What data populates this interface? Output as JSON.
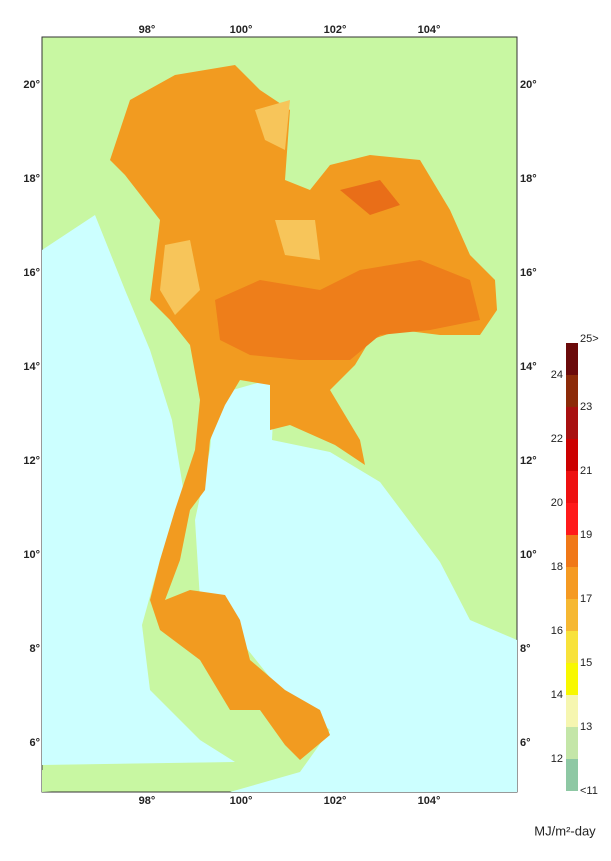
{
  "map": {
    "lon_labels": [
      "98°",
      "100°",
      "102°",
      "104°"
    ],
    "lat_labels": [
      "20°",
      "18°",
      "16°",
      "14°",
      "12°",
      "10°",
      "8°",
      "6°"
    ]
  },
  "legend": {
    "labels": [
      "25>",
      "24",
      "23",
      "22",
      "21",
      "20",
      "19",
      "18",
      "17",
      "16",
      "15",
      "14",
      "13",
      "12",
      "<11"
    ],
    "colors": [
      "#6b0a0a",
      "#8c2a08",
      "#a81010",
      "#cc0000",
      "#ee1010",
      "#ff1a1a",
      "#f07818",
      "#f59a22",
      "#f6b832",
      "#f8e23a",
      "#f8f800",
      "#f6f6b0",
      "#c4e6a8",
      "#8ec8a4"
    ],
    "unit": "MJ/m²-day"
  }
}
